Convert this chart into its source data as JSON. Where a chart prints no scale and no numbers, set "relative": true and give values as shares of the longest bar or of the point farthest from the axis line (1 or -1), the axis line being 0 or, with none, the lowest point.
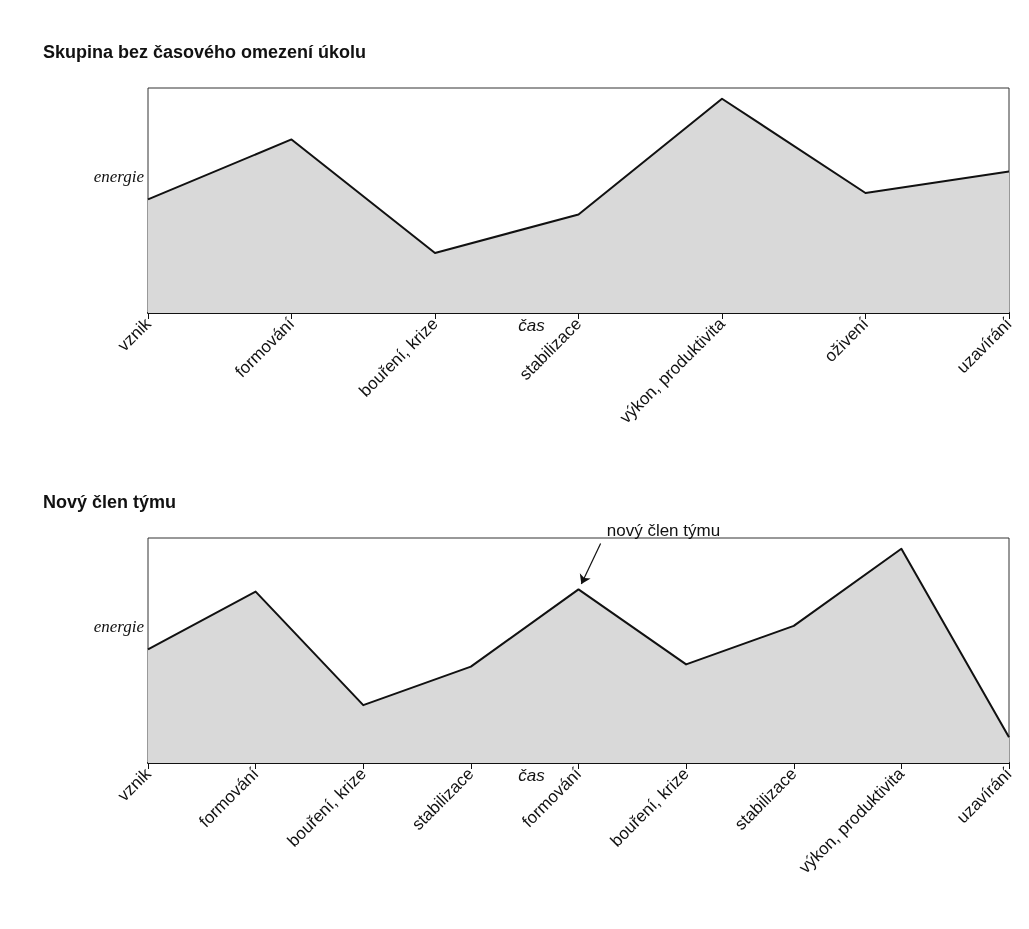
{
  "chart_data": [
    {
      "type": "area",
      "title": "Skupina bez časového omezení úkolu",
      "xlabel": "čas",
      "ylabel": "energie",
      "relative": true,
      "categories": [
        "vznik",
        "formování",
        "bouření, krize",
        "stabilizace",
        "výkon, produktivita",
        "oživení",
        "uzavírání"
      ],
      "series": [
        {
          "color": "#d9d9d9",
          "values": [
            0.53,
            0.81,
            0.28,
            0.46,
            1,
            0.56,
            0.66
          ]
        }
      ],
      "grid": false,
      "marker": "none"
    },
    {
      "type": "area",
      "title": "Nový člen týmu",
      "xlabel": "čas",
      "ylabel": "energie",
      "relative": true,
      "categories": [
        "vznik",
        "formování",
        "bouření, krize",
        "stabilizace",
        "formování",
        "bouření, krize",
        "stabilizace",
        "výkon, produktivita",
        "uzavírání"
      ],
      "series": [
        {
          "color": "#d9d9d9",
          "values": [
            0.53,
            0.8,
            0.27,
            0.45,
            0.81,
            0.46,
            0.64,
            1,
            0.12
          ]
        }
      ],
      "grid": false,
      "marker": "none",
      "annotations": [
        "nový člen týmu"
      ]
    }
  ]
}
